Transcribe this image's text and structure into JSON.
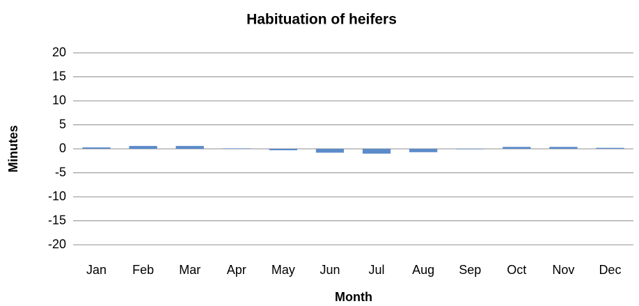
{
  "chart_data": {
    "type": "bar",
    "title": "Habituation of heifers",
    "x_label": "Month",
    "y_label": "Minutes",
    "categories": [
      "Jan",
      "Feb",
      "Mar",
      "Apr",
      "May",
      "Jun",
      "Jul",
      "Aug",
      "Sep",
      "Oct",
      "Nov",
      "Dec"
    ],
    "values": [
      0.3,
      0.6,
      0.6,
      0.1,
      -0.3,
      -0.8,
      -1.0,
      -0.7,
      -0.1,
      0.4,
      0.4,
      0.2
    ],
    "color": "#5b8bc9",
    "ylim": [
      -20,
      20
    ],
    "yticks": [
      -20,
      -15,
      -10,
      -5,
      0,
      5,
      10,
      15,
      20
    ],
    "grid": true
  }
}
